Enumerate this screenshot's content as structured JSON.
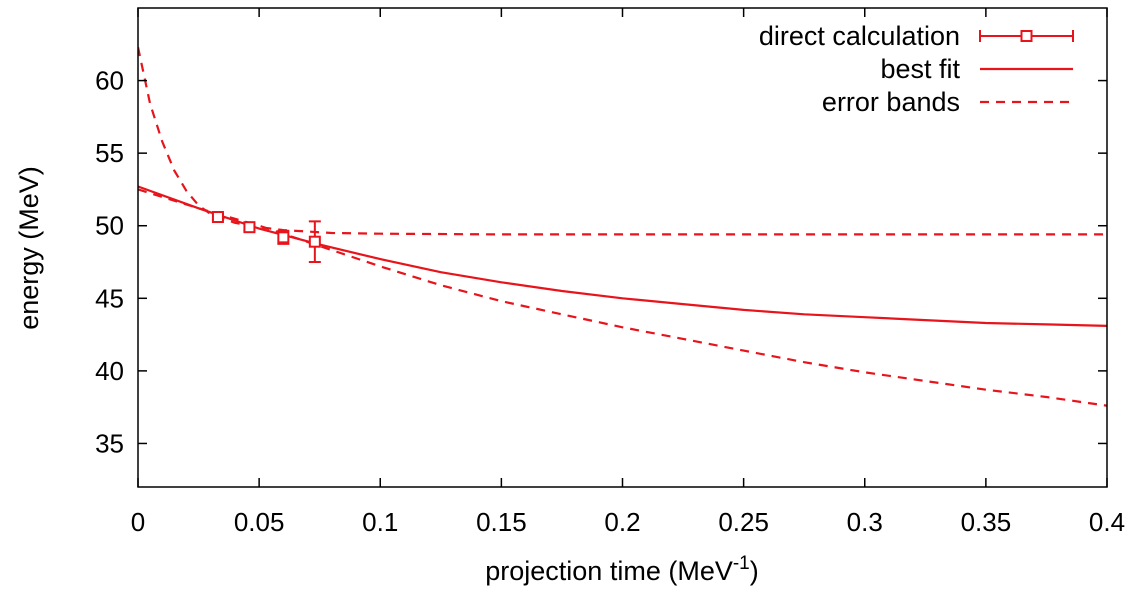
{
  "chart_data": {
    "type": "line",
    "xlabel": "projection time (MeV",
    "xlabel_superscript": "-1",
    "xlabel_suffix": ")",
    "ylabel": "energy (MeV)",
    "xlim": [
      0,
      0.4
    ],
    "ylim": [
      32,
      65
    ],
    "x_ticks": [
      0,
      0.05,
      0.1,
      0.15,
      0.2,
      0.25,
      0.3,
      0.35,
      0.4
    ],
    "x_tick_labels": [
      "0",
      "0.05",
      "0.1",
      "0.15",
      "0.2",
      "0.25",
      "0.3",
      "0.35",
      "0.4"
    ],
    "y_ticks": [
      35,
      40,
      45,
      50,
      55,
      60
    ],
    "y_tick_labels": [
      "35",
      "40",
      "45",
      "50",
      "55",
      "60"
    ],
    "grid": false,
    "legend_position": "top-right",
    "color": "#e8141b",
    "series": [
      {
        "name": "direct calculation",
        "style": "points-errorbars",
        "points": [
          {
            "x": 0.033,
            "y": 50.6,
            "err": 0.2
          },
          {
            "x": 0.046,
            "y": 49.9,
            "err": 0.25
          },
          {
            "x": 0.06,
            "y": 49.2,
            "err": 0.45
          },
          {
            "x": 0.073,
            "y": 48.9,
            "err": 1.4
          }
        ]
      },
      {
        "name": "best fit",
        "style": "solid",
        "x": [
          0,
          0.025,
          0.05,
          0.075,
          0.1,
          0.125,
          0.15,
          0.175,
          0.2,
          0.225,
          0.25,
          0.275,
          0.3,
          0.325,
          0.35,
          0.375,
          0.4
        ],
        "y": [
          52.7,
          51.2,
          49.8,
          48.7,
          47.7,
          46.8,
          46.1,
          45.5,
          45.0,
          44.6,
          44.2,
          43.9,
          43.7,
          43.5,
          43.3,
          43.2,
          43.1
        ]
      },
      {
        "name": "error bands",
        "style": "dashed",
        "x": [
          0,
          0.005,
          0.01,
          0.015,
          0.02,
          0.025,
          0.03,
          0.04,
          0.05,
          0.06,
          0.08,
          0.1,
          0.15,
          0.2,
          0.25,
          0.3,
          0.35,
          0.4
        ],
        "y": [
          62.3,
          58.4,
          55.8,
          53.8,
          52.4,
          51.4,
          50.8,
          50.2,
          49.9,
          49.7,
          49.5,
          49.45,
          49.4,
          49.4,
          49.4,
          49.4,
          49.4,
          49.4
        ]
      },
      {
        "name": "error bands",
        "style": "dashed",
        "x": [
          0,
          0.025,
          0.05,
          0.075,
          0.1,
          0.125,
          0.15,
          0.175,
          0.2,
          0.225,
          0.25,
          0.275,
          0.3,
          0.325,
          0.35,
          0.375,
          0.4
        ],
        "y": [
          52.5,
          51.2,
          50.0,
          48.6,
          47.2,
          45.9,
          44.8,
          43.9,
          43.0,
          42.2,
          41.4,
          40.6,
          39.9,
          39.3,
          38.7,
          38.2,
          37.6
        ]
      }
    ],
    "legend": [
      {
        "label": "direct calculation",
        "style": "points-errorbars"
      },
      {
        "label": "best fit",
        "style": "solid"
      },
      {
        "label": "error bands",
        "style": "dashed"
      }
    ]
  }
}
